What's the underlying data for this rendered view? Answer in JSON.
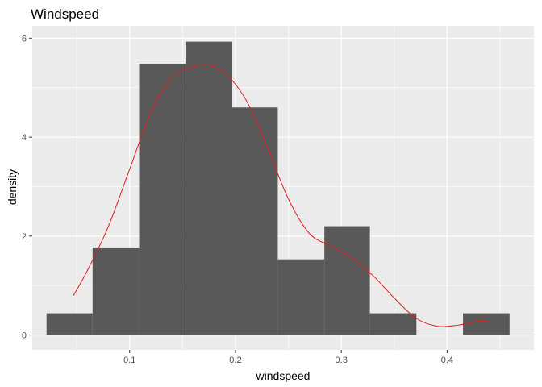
{
  "chart_data": {
    "type": "bar",
    "title": "Windspeed",
    "xlabel": "windspeed",
    "ylabel": "density",
    "xlim": [
      0.008,
      0.482
    ],
    "ylim": [
      -0.3,
      6.25
    ],
    "x_ticks": [
      0.1,
      0.2,
      0.3,
      0.4
    ],
    "x_tick_labels": [
      "0.1",
      "0.2",
      "0.3",
      "0.4"
    ],
    "y_ticks": [
      0,
      2,
      4,
      6
    ],
    "y_tick_labels": [
      "0",
      "2",
      "4",
      "6"
    ],
    "grid": true,
    "bins": [
      {
        "x0": 0.0215,
        "x1": 0.065,
        "density": 0.44
      },
      {
        "x0": 0.065,
        "x1": 0.109,
        "density": 1.77
      },
      {
        "x0": 0.109,
        "x1": 0.153,
        "density": 5.48
      },
      {
        "x0": 0.153,
        "x1": 0.197,
        "density": 5.93
      },
      {
        "x0": 0.197,
        "x1": 0.24,
        "density": 4.6
      },
      {
        "x0": 0.24,
        "x1": 0.284,
        "density": 1.53
      },
      {
        "x0": 0.284,
        "x1": 0.327,
        "density": 2.2
      },
      {
        "x0": 0.327,
        "x1": 0.371,
        "density": 0.44
      },
      {
        "x0": 0.371,
        "x1": 0.415,
        "density": 0.0
      },
      {
        "x0": 0.415,
        "x1": 0.459,
        "density": 0.44
      }
    ],
    "density_curve": {
      "x": [
        0.047,
        0.06,
        0.08,
        0.1,
        0.12,
        0.14,
        0.16,
        0.175,
        0.19,
        0.21,
        0.23,
        0.25,
        0.27,
        0.29,
        0.31,
        0.33,
        0.35,
        0.37,
        0.39,
        0.41,
        0.43,
        0.442
      ],
      "y": [
        0.8,
        1.3,
        2.2,
        3.35,
        4.5,
        5.2,
        5.42,
        5.44,
        5.3,
        4.75,
        3.8,
        2.75,
        2.05,
        1.8,
        1.55,
        1.2,
        0.75,
        0.35,
        0.18,
        0.2,
        0.28,
        0.26
      ]
    },
    "colors": {
      "panel_background": "#ebebeb",
      "grid_major": "#ffffff",
      "bar_fill": "#595959",
      "curve": "#e31a1c",
      "tick_text": "#4d4d4d",
      "tick_mark": "#333333"
    }
  }
}
